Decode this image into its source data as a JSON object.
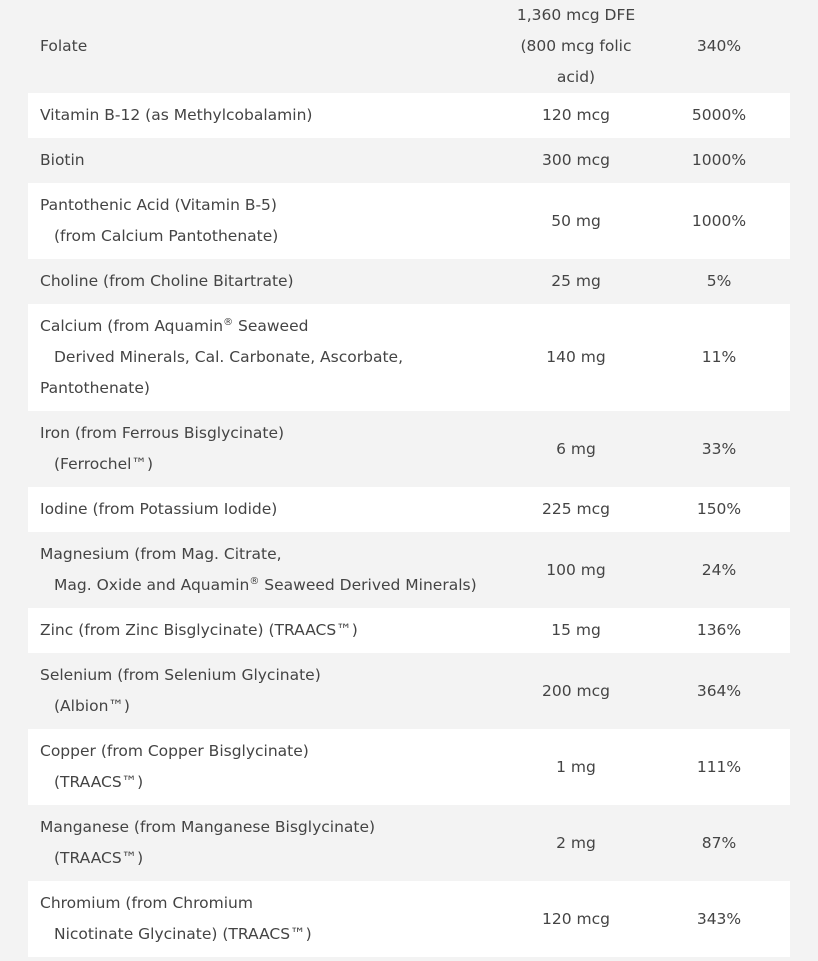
{
  "rows": [
    {
      "name": [
        "Folate"
      ],
      "amount": [
        "1,360 mcg DFE",
        "(800 mcg folic",
        "acid)"
      ],
      "dv": "340%"
    },
    {
      "name": [
        "Vitamin B-12 (as Methylcobalamin)"
      ],
      "amount": [
        "120 mcg"
      ],
      "dv": "5000%"
    },
    {
      "name": [
        "Biotin"
      ],
      "amount": [
        "300 mcg"
      ],
      "dv": "1000%"
    },
    {
      "name": [
        "Pantothenic Acid (Vitamin B-5)",
        "(from Calcium Pantothenate)"
      ],
      "amount": [
        "50 mg"
      ],
      "dv": "1000%"
    },
    {
      "name": [
        "Choline (from Choline Bitartrate)"
      ],
      "amount": [
        "25 mg"
      ],
      "dv": "5%"
    },
    {
      "name": [
        "Calcium (from Aquamin",
        "Derived Minerals, Cal. Carbonate, Ascorbate,",
        "Pantothenate)"
      ],
      "name_sup": "®",
      "name_after_sup": " Seaweed",
      "amount": [
        "140 mg"
      ],
      "dv": "11%"
    },
    {
      "name": [
        "Iron (from Ferrous Bisglycinate)",
        "(Ferrochel™)"
      ],
      "amount": [
        "6 mg"
      ],
      "dv": "33%"
    },
    {
      "name": [
        "Iodine (from Potassium Iodide)"
      ],
      "amount": [
        "225 mcg"
      ],
      "dv": "150%"
    },
    {
      "name": [
        "Magnesium (from Mag. Citrate,",
        "Mag. Oxide and Aquamin"
      ],
      "name_sup": "®",
      "name_after_sup": " Seaweed Derived Minerals)",
      "amount": [
        "100 mg"
      ],
      "dv": "24%"
    },
    {
      "name": [
        "Zinc (from Zinc Bisglycinate) (TRAACS™)"
      ],
      "amount": [
        "15 mg"
      ],
      "dv": "136%"
    },
    {
      "name": [
        "Selenium (from Selenium Glycinate)",
        "(Albion™)"
      ],
      "amount": [
        "200 mcg"
      ],
      "dv": "364%"
    },
    {
      "name": [
        "Copper (from Copper Bisglycinate)",
        "(TRAACS™)"
      ],
      "amount": [
        "1 mg"
      ],
      "dv": "111%"
    },
    {
      "name": [
        "Manganese (from Manganese Bisglycinate)",
        "(TRAACS™)"
      ],
      "amount": [
        "2 mg"
      ],
      "dv": "87%"
    },
    {
      "name": [
        "Chromium (from Chromium",
        "Nicotinate Glycinate) (TRAACS™)"
      ],
      "amount": [
        "120 mcg"
      ],
      "dv": "343%"
    }
  ]
}
